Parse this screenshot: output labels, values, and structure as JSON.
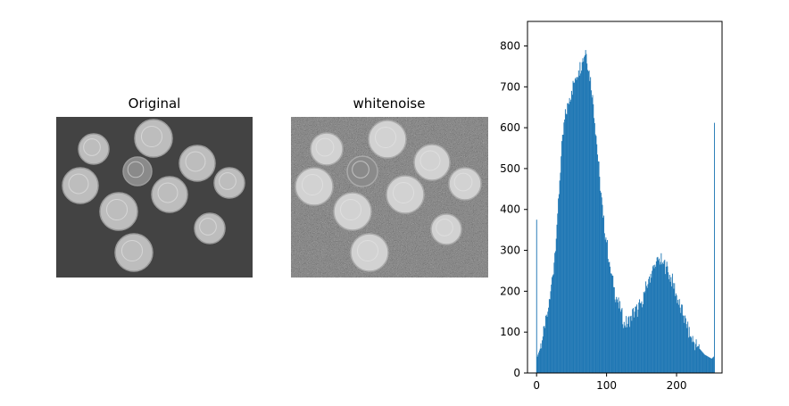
{
  "panels": {
    "original": {
      "title": "Original",
      "background": "#434343",
      "coin_fill": "#bdbdbd",
      "coin_stroke": "#9a9a9a"
    },
    "whitenoise": {
      "title": "whitenoise",
      "background": "#4a4a4a",
      "coin_fill": "#d2d2d2",
      "coin_stroke": "#aaaaaa"
    }
  },
  "chart_data": {
    "type": "bar",
    "title": "",
    "xlabel": "",
    "ylabel": "",
    "xlim": [
      -13,
      265
    ],
    "ylim": [
      0,
      860
    ],
    "xticks": [
      0,
      100,
      200
    ],
    "yticks": [
      0,
      100,
      200,
      300,
      400,
      500,
      600,
      700,
      800
    ],
    "bar_color": "#1f77b4",
    "grid": false,
    "bins": 256,
    "profile_x": [
      0,
      1,
      2,
      4,
      8,
      12,
      16,
      20,
      25,
      30,
      35,
      40,
      45,
      50,
      55,
      60,
      65,
      70,
      75,
      80,
      85,
      90,
      95,
      100,
      105,
      110,
      115,
      120,
      125,
      130,
      135,
      140,
      145,
      150,
      155,
      160,
      165,
      170,
      175,
      180,
      185,
      190,
      195,
      200,
      205,
      210,
      215,
      220,
      225,
      230,
      235,
      240,
      245,
      250,
      253,
      254,
      255
    ],
    "profile_y": [
      375,
      40,
      45,
      55,
      80,
      110,
      150,
      200,
      270,
      390,
      530,
      620,
      660,
      690,
      720,
      740,
      760,
      790,
      740,
      680,
      580,
      480,
      380,
      320,
      260,
      210,
      180,
      150,
      125,
      120,
      140,
      150,
      155,
      175,
      200,
      230,
      250,
      260,
      280,
      270,
      260,
      240,
      220,
      190,
      160,
      140,
      110,
      90,
      75,
      65,
      55,
      45,
      40,
      35,
      40,
      612,
      0
    ]
  }
}
